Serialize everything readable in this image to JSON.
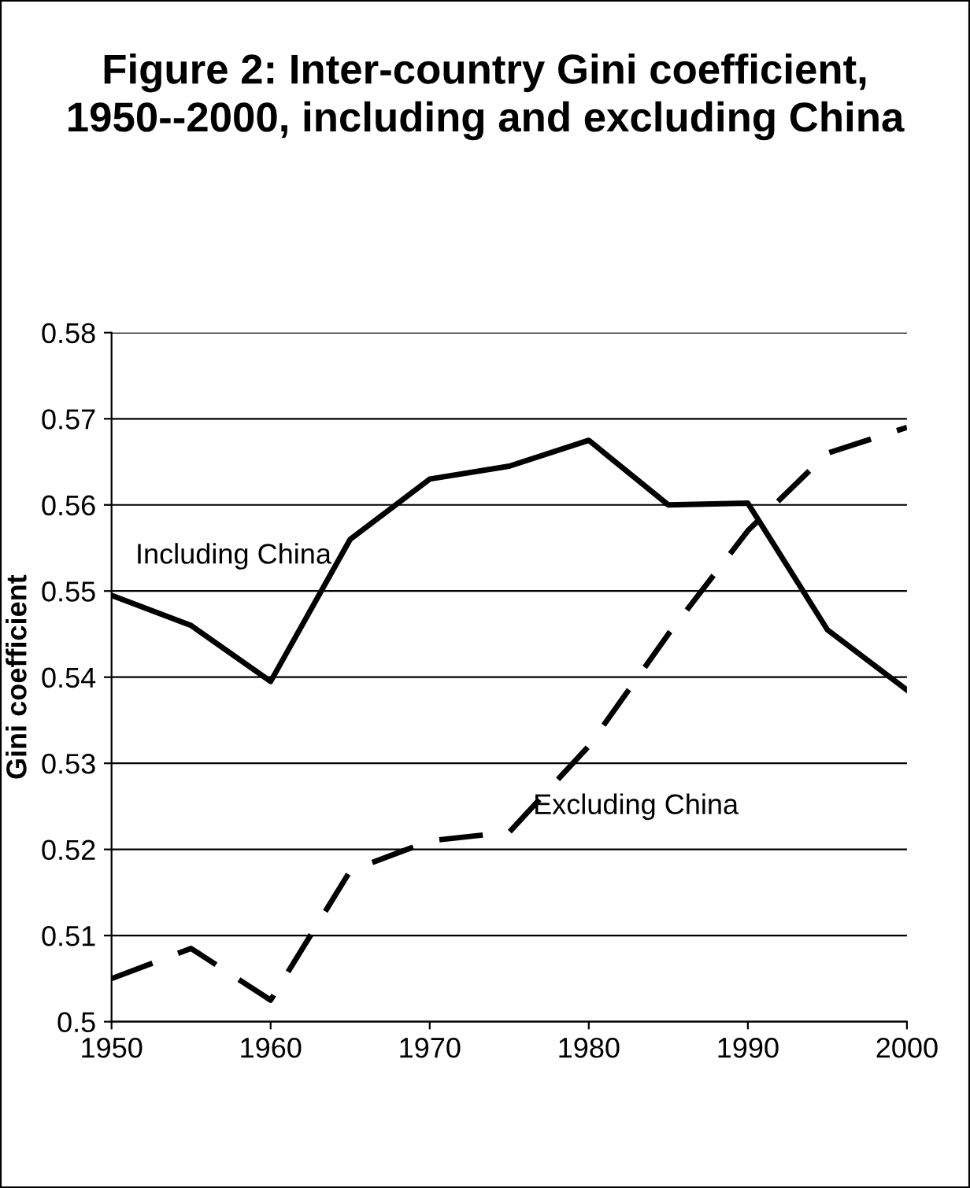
{
  "chart_data": {
    "type": "line",
    "title": "Figure 2: Inter-country Gini coefficient, 1950--2000, including and excluding China",
    "ylabel": "Gini coefficient",
    "x": [
      1950,
      1955,
      1960,
      1965,
      1970,
      1975,
      1980,
      1985,
      1990,
      1995,
      2000
    ],
    "series": [
      {
        "name": "Including China",
        "color": "#000000",
        "line_style": "solid",
        "values": [
          0.5495,
          0.546,
          0.5395,
          0.556,
          0.563,
          0.5645,
          0.5675,
          0.56,
          0.5602,
          0.5455,
          0.5385
        ]
      },
      {
        "name": "Excluding China",
        "color": "#000000",
        "line_style": "dashed",
        "values": [
          0.505,
          0.5085,
          0.5025,
          0.5175,
          0.521,
          0.522,
          0.532,
          0.545,
          0.557,
          0.566,
          0.569
        ]
      }
    ],
    "xlim": [
      1950,
      2000
    ],
    "xticks": [
      1950,
      1960,
      1970,
      1980,
      1990,
      2000
    ],
    "ylim": [
      0.5,
      0.58
    ],
    "yticks": [
      {
        "value": 0.5,
        "label": "0.5"
      },
      0.51,
      0.52,
      0.53,
      0.54,
      0.55,
      0.56,
      0.57,
      0.58
    ],
    "grid": "y",
    "legend": false,
    "marker": "none"
  }
}
